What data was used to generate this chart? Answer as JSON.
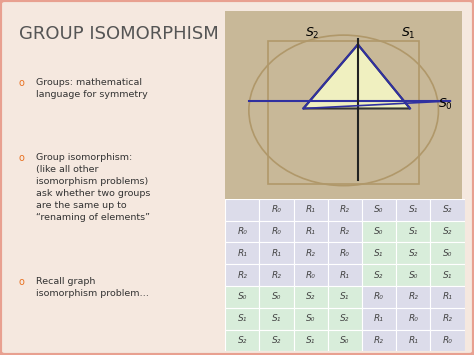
{
  "title": "GROUP ISOMORPHISM",
  "title_color": "#555555",
  "bg_color": "#f5e8df",
  "bullet_color": "#e87020",
  "bullets": [
    "Groups: mathematical\nlanguage for symmetry",
    "Group isomorphism:\n(like all other\nisomorphism problems)\nask whether two groups\nare the same up to\n“renaming of elements”",
    "Recall graph\nisomorphism problem…"
  ],
  "table_header": [
    "",
    "R₀",
    "R₁",
    "R₂",
    "S₀",
    "S₁",
    "S₂"
  ],
  "table_rows": [
    [
      "R₀",
      "R₀",
      "R₁",
      "R₂",
      "S₀",
      "S₁",
      "S₂"
    ],
    [
      "R₁",
      "R₁",
      "R₂",
      "R₀",
      "S₁",
      "S₂",
      "S₀"
    ],
    [
      "R₂",
      "R₂",
      "R₀",
      "R₁",
      "S₂",
      "S₀",
      "S₁"
    ],
    [
      "S₀",
      "S₀",
      "S₂",
      "S₁",
      "R₀",
      "R₂",
      "R₁"
    ],
    [
      "S₁",
      "S₁",
      "S₀",
      "S₂",
      "R₁",
      "R₀",
      "R₂"
    ],
    [
      "S₂",
      "S₂",
      "S₁",
      "S₀",
      "R₂",
      "R₁",
      "R₀"
    ]
  ],
  "table_text_color": "#444444",
  "border_color": "#e8a090",
  "img_bg_color": "#c8b898",
  "triangle_color": "#f0f0c0",
  "line_color_blue": "#3030a0",
  "line_color_dark": "#222222"
}
